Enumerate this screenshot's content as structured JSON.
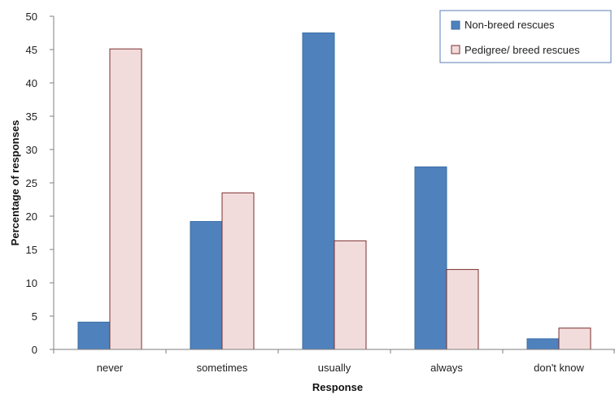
{
  "chart_data": {
    "type": "bar",
    "title": "",
    "xlabel": "Response",
    "ylabel": "Percentage of responses",
    "categories": [
      "never",
      "sometimes",
      "usually",
      "always",
      "don't know"
    ],
    "series": [
      {
        "name": "Non-breed rescues",
        "values": [
          4.1,
          19.2,
          47.5,
          27.4,
          1.6
        ],
        "color": "#4f81bd",
        "stroke": "#3a6ea5"
      },
      {
        "name": "Pedigree/ breed rescues",
        "values": [
          45.1,
          23.5,
          16.3,
          12.0,
          3.2
        ],
        "color": "#f2dcdb",
        "stroke": "#7a2f2f"
      }
    ],
    "ylim": [
      0,
      50
    ],
    "yticks": [
      0,
      5,
      10,
      15,
      20,
      25,
      30,
      35,
      40,
      45,
      50
    ],
    "grid": false,
    "legend_position": "top-right"
  }
}
